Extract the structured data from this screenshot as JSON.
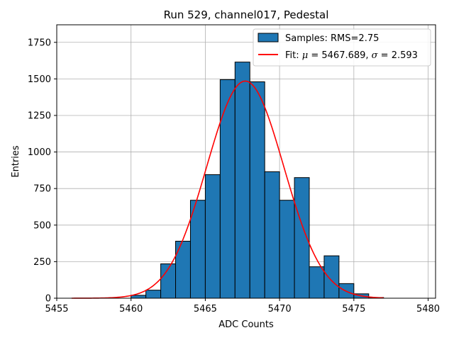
{
  "chart_data": {
    "type": "bar",
    "title": "Run 529, channel017, Pedestal",
    "xlabel": "ADC Counts",
    "ylabel": "Entries",
    "xlim": [
      5455,
      5480.5
    ],
    "ylim": [
      0,
      1870
    ],
    "xticks": [
      5455,
      5460,
      5465,
      5470,
      5475,
      5480
    ],
    "yticks": [
      0,
      250,
      500,
      750,
      1000,
      1250,
      1500,
      1750
    ],
    "grid": true,
    "legend_position": "top-right",
    "histogram": {
      "name": "Samples: RMS=2.75",
      "color": "#1f77b4",
      "bin_width": 1,
      "bins": [
        {
          "x": 5460,
          "value": 20
        },
        {
          "x": 5461,
          "value": 55
        },
        {
          "x": 5462,
          "value": 235
        },
        {
          "x": 5463,
          "value": 390
        },
        {
          "x": 5464,
          "value": 670
        },
        {
          "x": 5465,
          "value": 845
        },
        {
          "x": 5466,
          "value": 1495
        },
        {
          "x": 5467,
          "value": 1615
        },
        {
          "x": 5468,
          "value": 1480
        },
        {
          "x": 5469,
          "value": 865
        },
        {
          "x": 5470,
          "value": 670
        },
        {
          "x": 5471,
          "value": 825
        },
        {
          "x": 5472,
          "value": 215
        },
        {
          "x": 5473,
          "value": 290
        },
        {
          "x": 5474,
          "value": 100
        },
        {
          "x": 5475,
          "value": 30
        },
        {
          "x": 5476,
          "value": 5
        }
      ]
    },
    "fit": {
      "name_prefix": "Fit: ",
      "mu_symbol": "μ",
      "sigma_symbol": "σ",
      "mu_text": " = 5467.689, ",
      "sigma_text": " = 2.593",
      "color": "#ff0000",
      "type": "gaussian",
      "mu": 5467.689,
      "sigma": 2.593,
      "amplitude": 1485,
      "x_range": [
        5456,
        5477
      ]
    }
  }
}
